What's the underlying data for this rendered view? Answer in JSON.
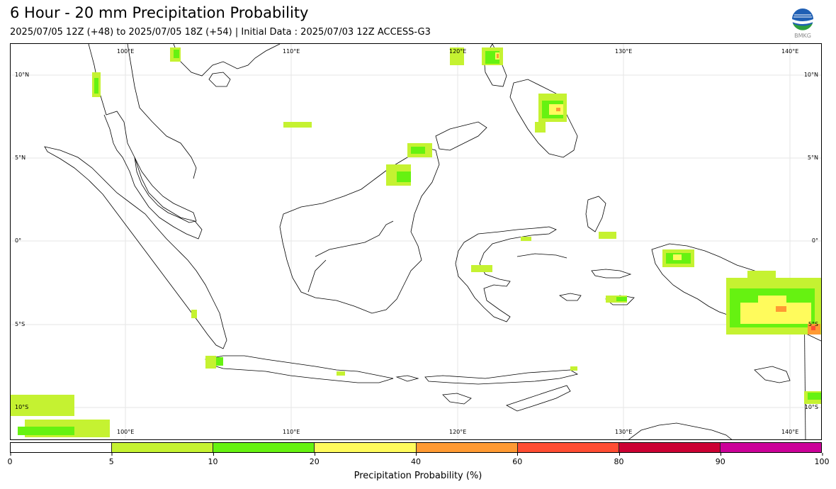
{
  "header": {
    "title": "6 Hour - 20 mm Precipitation Probability",
    "subtitle": "2025/07/05 12Z (+48) to 2025/07/05 18Z (+54) | Initial Data : 2025/07/03 12Z ACCESS-G3",
    "logo_text": "BMKG"
  },
  "map": {
    "lon_ticks": [
      "100°E",
      "110°E",
      "120°E",
      "130°E",
      "140°E"
    ],
    "lat_ticks_left": [
      "10°N",
      "5°N",
      "0°",
      "5°S",
      "10°S"
    ],
    "lat_ticks_right": [
      "10°N",
      "5°N",
      "0°",
      "5°S",
      "10°S"
    ],
    "land_color": "#ffffff",
    "coast_color": "#000000",
    "grid_color": "#dddddd"
  },
  "colorbar": {
    "label": "Precipitation Probability (%)",
    "ticks": [
      "0",
      "5",
      "10",
      "20",
      "40",
      "60",
      "80",
      "90",
      "100"
    ],
    "colors": [
      "#ffffff",
      "#c5f231",
      "#66f211",
      "#fffb5c",
      "#ff9a33",
      "#ff4d33",
      "#cc0033",
      "#cc0099"
    ]
  }
}
